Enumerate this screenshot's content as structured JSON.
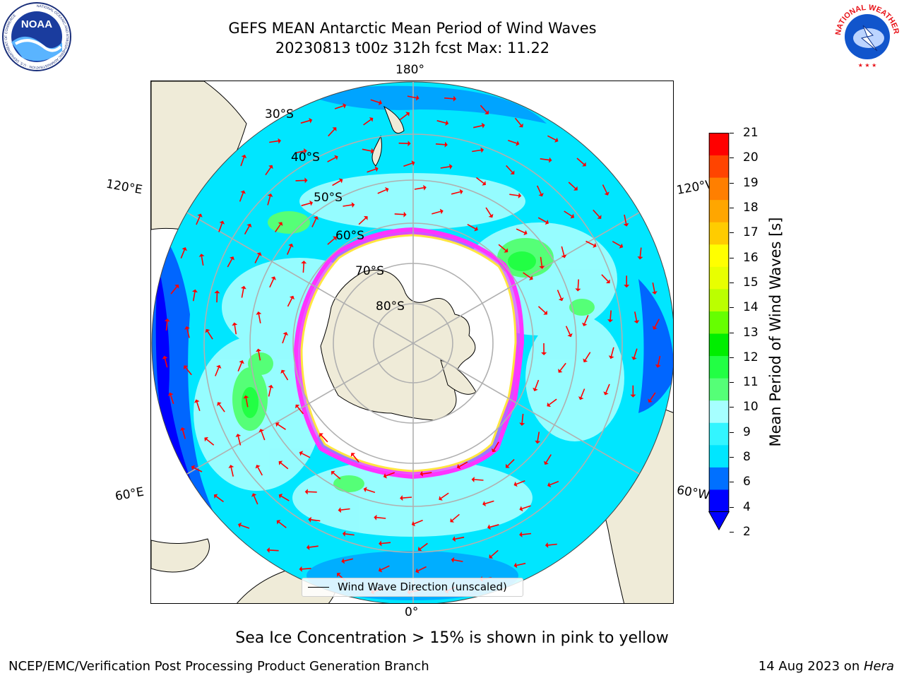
{
  "title": {
    "line1": "GEFS MEAN Antarctic Mean Period of Wind Waves",
    "line2": "20230813 t00z 312h fcst   Max: 11.22"
  },
  "logos": {
    "left": {
      "name": "NOAA",
      "text": "NOAA",
      "ring_text": "NATIONAL OCEANIC AND ATMOSPHERIC ADMINISTRATION · U.S. DEPARTMENT OF COMMERCE"
    },
    "right": {
      "name": "National Weather Service",
      "ring_text": "NATIONAL WEATHER SERVICE"
    }
  },
  "map": {
    "projection": "south-polar-stereographic",
    "longitude_labels": {
      "top": "180°",
      "bottom": "0°",
      "upper_left": "120°E",
      "lower_left": "60°E",
      "upper_right": "120°W",
      "lower_right": "60°W"
    },
    "latitude_labels": [
      "30°S",
      "40°S",
      "50°S",
      "60°S",
      "70°S",
      "80°S"
    ],
    "colors": {
      "land": "#efebd8",
      "sea_ice_low": "#ff33ff",
      "sea_ice_high": "#ffe640",
      "arrow": "#ff0000",
      "grid": "#b0b0b0"
    }
  },
  "legend": {
    "label": "Wind Wave Direction (unscaled)"
  },
  "colorbar": {
    "label": "Mean Period of Wind Waves [s]",
    "ticks": [
      "21",
      "20",
      "19",
      "18",
      "17",
      "16",
      "15",
      "14",
      "13",
      "12",
      "11",
      "10",
      "9",
      "8",
      "6",
      "4",
      "2"
    ],
    "colors_low_to_high": [
      "#0000ff",
      "#0070ff",
      "#00e6ff",
      "#33f5ff",
      "#a6ffff",
      "#55ff77",
      "#22ff44",
      "#00ee00",
      "#66ff00",
      "#bbff00",
      "#e8ff00",
      "#ffff00",
      "#ffcc00",
      "#ffa600",
      "#ff7f00",
      "#ff4400",
      "#ff0000"
    ]
  },
  "note": "Sea Ice Concentration > 15% is shown in pink to yellow",
  "footer": {
    "left": "NCEP/EMC/Verification Post Processing Product Generation Branch",
    "right_date": "14 Aug 2023 on ",
    "right_machine": "Hera"
  }
}
